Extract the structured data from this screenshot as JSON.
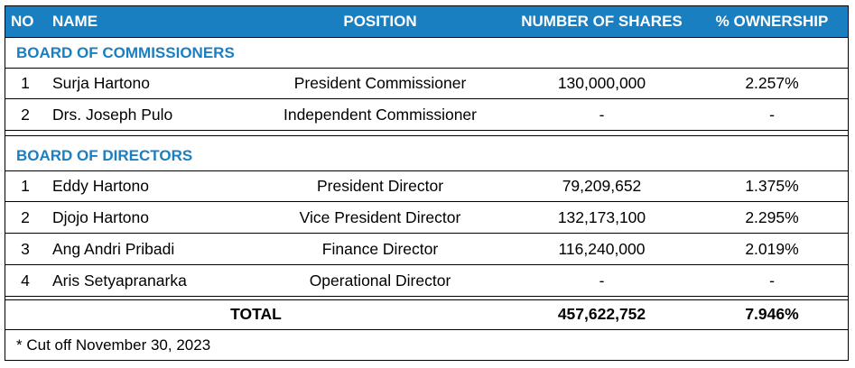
{
  "header": {
    "no": "NO",
    "name": "NAME",
    "position": "POSITION",
    "shares": "NUMBER OF SHARES",
    "ownership": "% OWNERSHIP"
  },
  "sections": [
    {
      "title": "BOARD OF COMMISSIONERS",
      "rows": [
        {
          "no": "1",
          "name": "Surja Hartono",
          "position": "President Commissioner",
          "shares": "130,000,000",
          "ownership": "2.257%"
        },
        {
          "no": "2",
          "name": "Drs. Joseph Pulo",
          "position": "Independent Commissioner",
          "shares": "-",
          "ownership": "-"
        }
      ]
    },
    {
      "title": "BOARD OF DIRECTORS",
      "rows": [
        {
          "no": "1",
          "name": "Eddy Hartono",
          "position": "President Director",
          "shares": "79,209,652",
          "ownership": "1.375%"
        },
        {
          "no": "2",
          "name": "Djojo Hartono",
          "position": "Vice President Director",
          "shares": "132,173,100",
          "ownership": "2.295%"
        },
        {
          "no": "3",
          "name": "Ang Andri Pribadi",
          "position": "Finance Director",
          "shares": "116,240,000",
          "ownership": "2.019%"
        },
        {
          "no": "4",
          "name": "Aris Setyapranarka",
          "position": "Operational Director",
          "shares": "-",
          "ownership": "-"
        }
      ]
    }
  ],
  "total": {
    "label": "TOTAL",
    "shares": "457,622,752",
    "ownership": "7.946%"
  },
  "footnote": "* Cut off November 30, 2023"
}
